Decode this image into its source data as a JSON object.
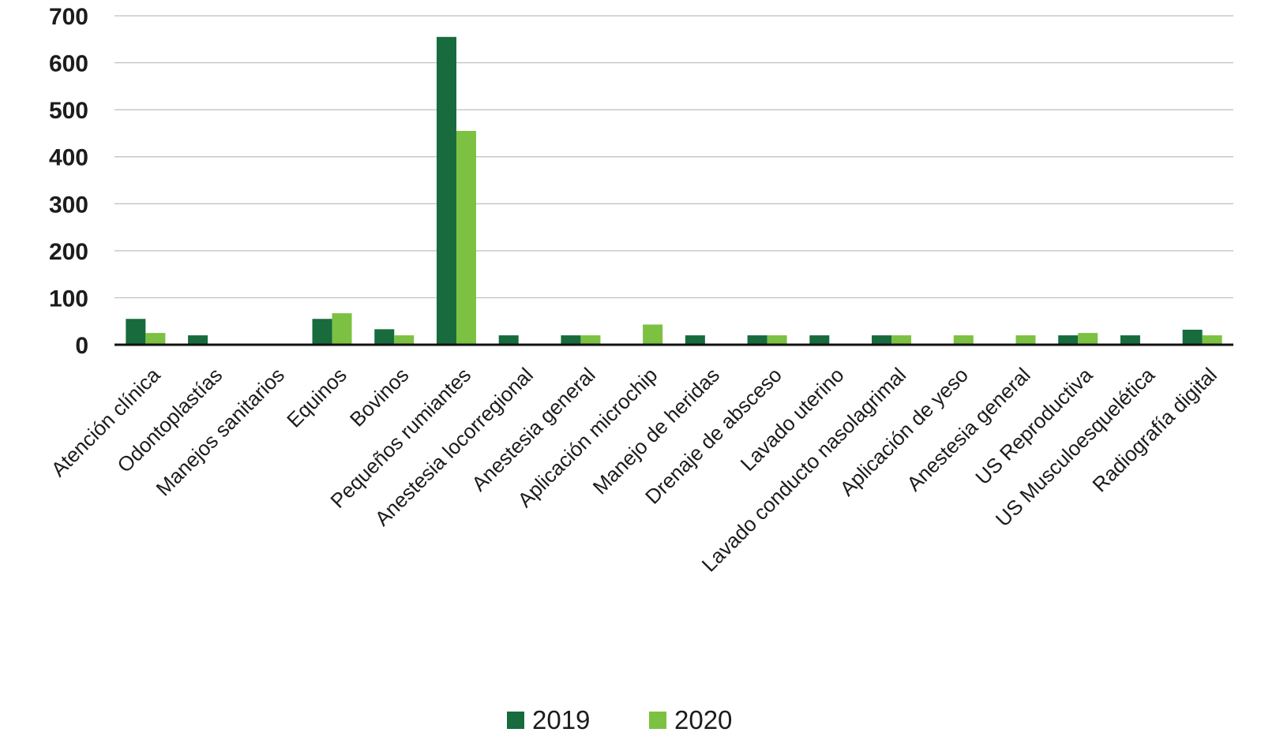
{
  "chart_data": {
    "type": "bar",
    "title": "",
    "xlabel": "",
    "ylabel": "",
    "ylim": [
      0,
      700
    ],
    "yticks": [
      0,
      100,
      200,
      300,
      400,
      500,
      600,
      700
    ],
    "grid": true,
    "legend_position": "bottom-center",
    "categories": [
      "Atención clínica",
      "Odontoplastías",
      "Manejos sanitarios",
      "Equinos",
      "Bovinos",
      "Pequeños rumiantes",
      "Anestesia locorregional",
      "Anestesia general",
      "Aplicación microchip",
      "Manejo de heridas",
      "Drenaje de absceso",
      "Lavado uterino",
      "Lavado conducto nasolagrimal",
      "Aplicación de yeso",
      "Anestesia general",
      "US Reproductiva",
      "US Musculoesquelética",
      "Radiografía digital"
    ],
    "series": [
      {
        "name": "2019",
        "color": "#176b3c",
        "values": [
          55,
          20,
          0,
          55,
          33,
          655,
          20,
          20,
          0,
          20,
          20,
          20,
          20,
          0,
          0,
          20,
          20,
          32
        ]
      },
      {
        "name": "2020",
        "color": "#7cc142",
        "values": [
          25,
          0,
          0,
          67,
          20,
          455,
          0,
          20,
          43,
          0,
          20,
          0,
          20,
          20,
          20,
          25,
          0,
          20
        ]
      }
    ]
  }
}
